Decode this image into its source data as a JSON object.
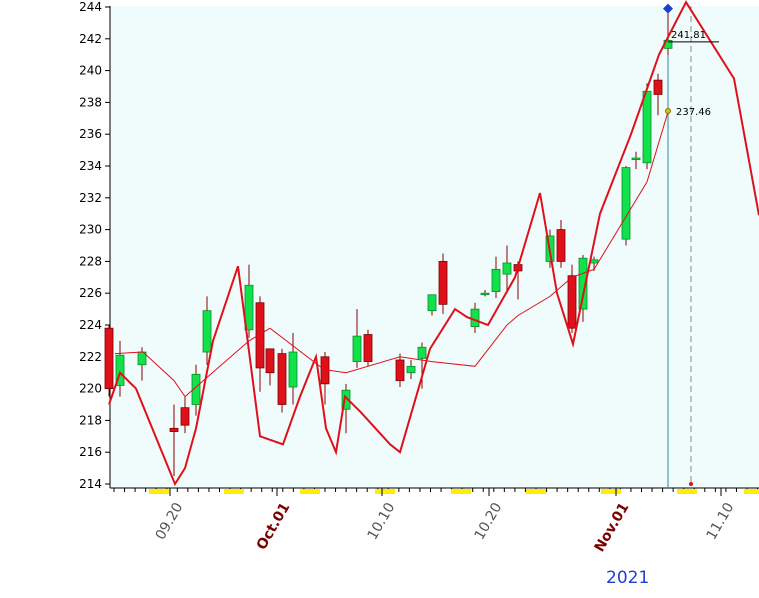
{
  "chart_data": {
    "type": "candlestick",
    "year_label": "2021",
    "ylim": [
      214,
      244
    ],
    "y_ticks": [
      214,
      216,
      218,
      220,
      222,
      224,
      226,
      228,
      230,
      232,
      234,
      236,
      238,
      240,
      242,
      244
    ],
    "x_ticks": [
      {
        "label": "09.20",
        "bold": false
      },
      {
        "label": "Oct.01",
        "bold": true
      },
      {
        "label": "10.10",
        "bold": false
      },
      {
        "label": "10.20",
        "bold": false
      },
      {
        "label": "Nov.01",
        "bold": true
      },
      {
        "label": "11.10",
        "bold": false
      }
    ],
    "annotations": [
      {
        "label": "241.81",
        "value": 241.81
      },
      {
        "label": "237.46",
        "value": 237.46
      }
    ],
    "candles": [
      {
        "o": 223.8,
        "h": 224.0,
        "l": 219.5,
        "c": 220.0
      },
      {
        "o": 220.2,
        "h": 223.0,
        "l": 219.5,
        "c": 222.1
      },
      {
        "o": 221.5,
        "h": 222.6,
        "l": 220.5,
        "c": 222.3
      },
      {
        "o": 217.5,
        "h": 219.0,
        "l": 214.5,
        "c": 217.3
      },
      {
        "o": 218.8,
        "h": 219.5,
        "l": 217.2,
        "c": 217.7
      },
      {
        "o": 219.0,
        "h": 221.5,
        "l": 218.3,
        "c": 220.9
      },
      {
        "o": 222.3,
        "h": 225.8,
        "l": 221.5,
        "c": 224.9
      },
      {
        "o": 223.7,
        "h": 227.8,
        "l": 223.2,
        "c": 226.5
      },
      {
        "o": 225.4,
        "h": 225.8,
        "l": 219.8,
        "c": 221.3
      },
      {
        "o": 222.5,
        "h": 222.5,
        "l": 220.2,
        "c": 221.0
      },
      {
        "o": 222.2,
        "h": 222.5,
        "l": 218.5,
        "c": 219.0
      },
      {
        "o": 220.1,
        "h": 223.5,
        "l": 219.0,
        "c": 222.3
      },
      {
        "o": 222.0,
        "h": 222.3,
        "l": 219.0,
        "c": 220.3
      },
      {
        "o": 218.7,
        "h": 220.3,
        "l": 217.2,
        "c": 219.9
      },
      {
        "o": 221.7,
        "h": 225.0,
        "l": 221.3,
        "c": 223.3
      },
      {
        "o": 223.4,
        "h": 223.7,
        "l": 221.4,
        "c": 221.7
      },
      {
        "o": 221.8,
        "h": 222.2,
        "l": 220.1,
        "c": 220.5
      },
      {
        "o": 221.0,
        "h": 221.8,
        "l": 220.6,
        "c": 221.4
      },
      {
        "o": 221.9,
        "h": 222.9,
        "l": 220.0,
        "c": 222.6
      },
      {
        "o": 224.9,
        "h": 225.9,
        "l": 224.6,
        "c": 225.9
      },
      {
        "o": 228.0,
        "h": 228.5,
        "l": 224.7,
        "c": 225.3
      },
      {
        "o": 223.9,
        "h": 225.4,
        "l": 223.5,
        "c": 225.0
      },
      {
        "o": 226.0,
        "h": 226.2,
        "l": 225.8,
        "c": 226.0
      },
      {
        "o": 226.1,
        "h": 228.3,
        "l": 225.7,
        "c": 227.5
      },
      {
        "o": 227.2,
        "h": 229.0,
        "l": 226.0,
        "c": 227.9
      },
      {
        "o": 227.8,
        "h": 228.0,
        "l": 225.6,
        "c": 227.4
      },
      {
        "o": 228.0,
        "h": 230.0,
        "l": 227.6,
        "c": 229.6
      },
      {
        "o": 230.0,
        "h": 230.6,
        "l": 227.6,
        "c": 228.0
      },
      {
        "o": 227.1,
        "h": 227.8,
        "l": 223.5,
        "c": 223.8
      },
      {
        "o": 225.0,
        "h": 228.4,
        "l": 224.2,
        "c": 228.2
      },
      {
        "o": 227.9,
        "h": 228.3,
        "l": 227.4,
        "c": 228.1
      },
      {
        "o": 229.4,
        "h": 234.0,
        "l": 229.0,
        "c": 233.9
      },
      {
        "o": 234.5,
        "h": 234.9,
        "l": 233.8,
        "c": 234.5
      },
      {
        "o": 234.2,
        "h": 239.2,
        "l": 233.8,
        "c": 238.7
      },
      {
        "o": 239.4,
        "h": 239.8,
        "l": 237.2,
        "c": 238.5
      },
      {
        "o": 241.4,
        "h": 244.0,
        "l": 241.0,
        "c": 241.9
      }
    ],
    "series": [
      {
        "type": "line",
        "values": [
          219.0,
          221.0,
          220.0,
          214.0,
          215.0,
          217.5,
          223.0,
          227.7,
          217.0,
          216.5,
          219.5,
          222.0,
          217.5,
          216.0,
          219.5,
          218.5,
          216.5,
          216.0,
          222.5,
          225.0,
          224.5,
          224.0,
          227.0,
          232.3,
          226.0,
          222.8,
          231.0,
          236.0,
          241.0,
          244.3,
          239.5,
          230.9
        ]
      },
      {
        "type": "line",
        "values": [
          222.2,
          222.3,
          220.5,
          219.5,
          223.0,
          223.8,
          221.2,
          221.0,
          222.0,
          221.7,
          221.4,
          224.0,
          224.6,
          225.8,
          227.0,
          227.5,
          233.0,
          237.4
        ]
      }
    ]
  }
}
